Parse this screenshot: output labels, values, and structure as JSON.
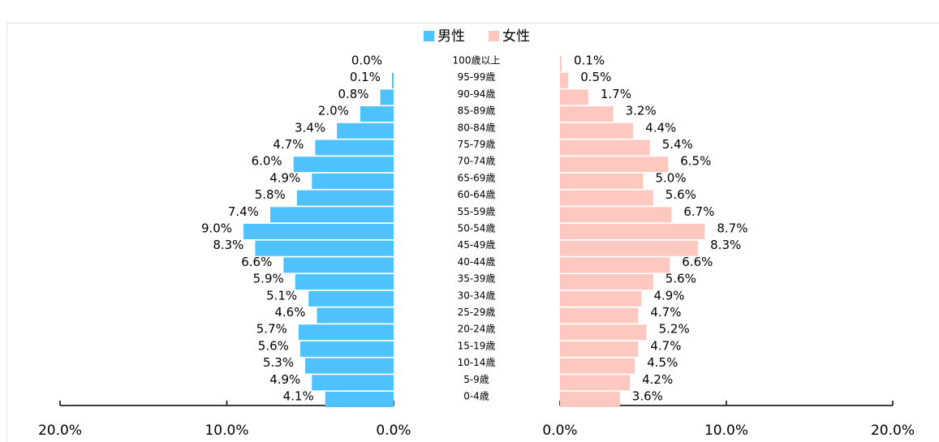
{
  "chart_data": {
    "type": "pyramid",
    "categories": [
      "100歳以上",
      "95-99歳",
      "90-94歳",
      "85-89歳",
      "80-84歳",
      "75-79歳",
      "70-74歳",
      "65-69歳",
      "60-64歳",
      "55-59歳",
      "50-54歳",
      "45-49歳",
      "40-44歳",
      "35-39歳",
      "30-34歳",
      "25-29歳",
      "20-24歳",
      "15-19歳",
      "10-14歳",
      "5-9歳",
      "0-4歳"
    ],
    "series": [
      {
        "name": "男性",
        "color": "#4fc1fb",
        "values": [
          0.0,
          0.1,
          0.8,
          2.0,
          3.4,
          4.7,
          6.0,
          4.9,
          5.8,
          7.4,
          9.0,
          8.3,
          6.6,
          5.9,
          5.1,
          4.6,
          5.7,
          5.6,
          5.3,
          4.9,
          4.1
        ],
        "value_labels": [
          "0.0%",
          "0.1%",
          "0.8%",
          "2.0%",
          "3.4%",
          "4.7%",
          "6.0%",
          "4.9%",
          "5.8%",
          "7.4%",
          "9.0%",
          "8.3%",
          "6.6%",
          "5.9%",
          "5.1%",
          "4.6%",
          "5.7%",
          "5.6%",
          "5.3%",
          "4.9%",
          "4.1%"
        ]
      },
      {
        "name": "女性",
        "color": "#fdc8bf",
        "values": [
          0.1,
          0.5,
          1.7,
          3.2,
          4.4,
          5.4,
          6.5,
          5.0,
          5.6,
          6.7,
          8.7,
          8.3,
          6.6,
          5.6,
          4.9,
          4.7,
          5.2,
          4.7,
          4.5,
          4.2,
          3.6
        ],
        "value_labels": [
          "0.1%",
          "0.5%",
          "1.7%",
          "3.2%",
          "4.4%",
          "5.4%",
          "6.5%",
          "5.0%",
          "5.6%",
          "6.7%",
          "8.7%",
          "8.3%",
          "6.6%",
          "5.6%",
          "4.9%",
          "4.7%",
          "5.2%",
          "4.7%",
          "4.5%",
          "4.2%",
          "3.6%"
        ]
      }
    ],
    "xlim": [
      0,
      20
    ],
    "xticks": [
      {
        "value": 0,
        "label": "0.0%"
      },
      {
        "value": 10,
        "label": "10.0%"
      },
      {
        "value": 20,
        "label": "20.0%"
      }
    ],
    "legend": "top"
  }
}
